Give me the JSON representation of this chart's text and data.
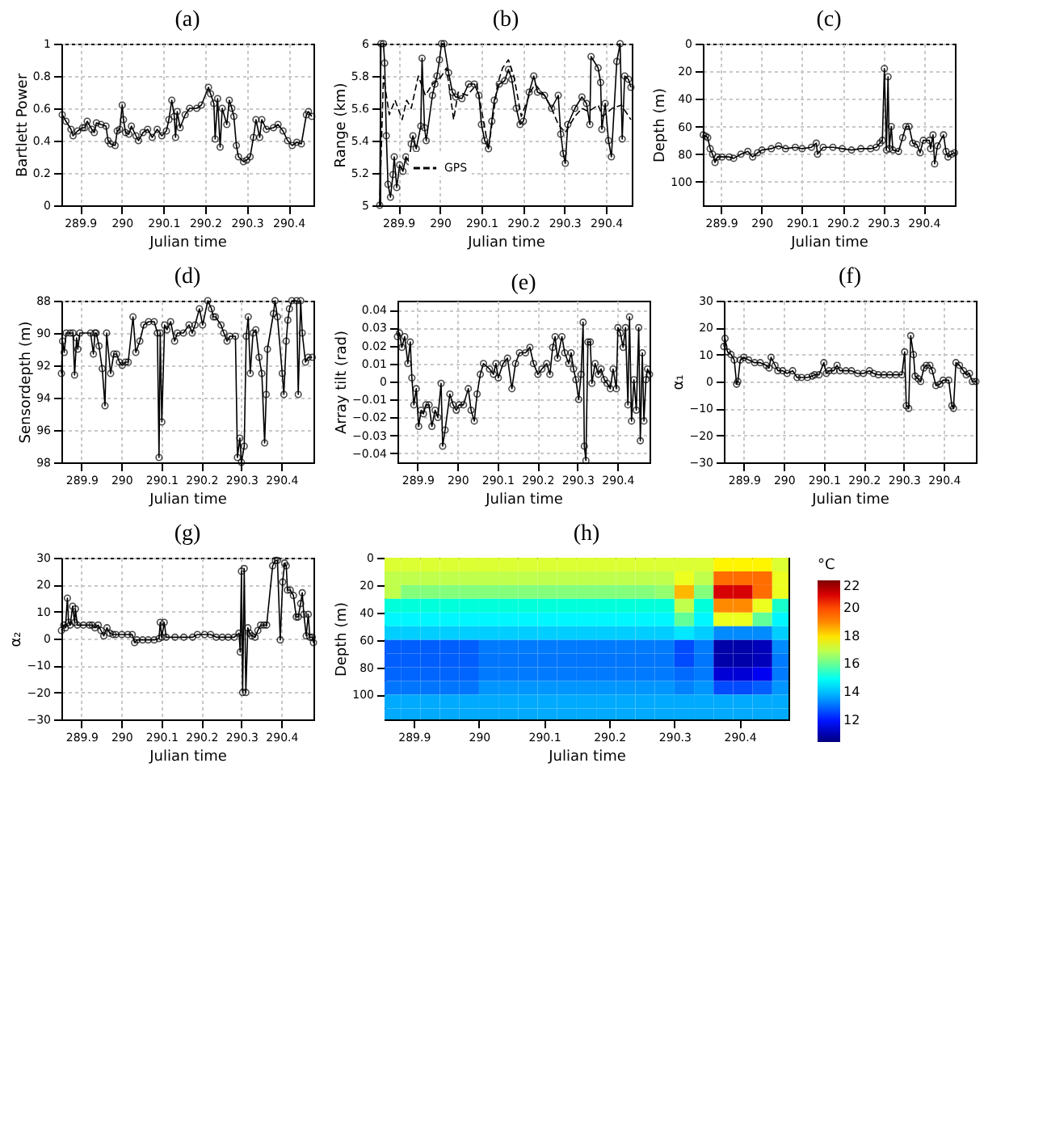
{
  "chart_data": [
    {
      "type": "line",
      "title": "(a)",
      "xlabel": "Julian time",
      "ylabel": "Bartlett Power",
      "xlim": [
        289.855,
        290.46
      ],
      "xticks": [
        289.9,
        290,
        290.1,
        290.2,
        290.3,
        290.4
      ],
      "ylim": [
        0,
        1
      ],
      "yticks": [
        0,
        0.2,
        0.4,
        0.6,
        0.8,
        1
      ],
      "grid": true,
      "marker": "circle",
      "color": "#000000",
      "x": [
        289.857,
        289.866,
        289.878,
        289.883,
        289.894,
        289.906,
        289.911,
        289.917,
        289.928,
        289.934,
        289.939,
        289.95,
        289.962,
        289.967,
        289.973,
        289.984,
        289.989,
        289.995,
        290.001,
        290.004,
        290.009,
        290.017,
        290.023,
        290.034,
        290.04,
        290.051,
        290.062,
        290.073,
        290.085,
        290.096,
        290.107,
        290.113,
        290.12,
        290.126,
        290.129,
        290.133,
        290.14,
        290.152,
        290.163,
        290.18,
        290.191,
        290.208,
        290.213,
        290.221,
        290.224,
        290.23,
        290.236,
        290.241,
        290.252,
        290.258,
        290.264,
        290.269,
        290.275,
        290.28,
        290.292,
        290.3,
        290.308,
        290.316,
        290.322,
        290.331,
        290.336,
        290.347,
        290.364,
        290.375,
        290.387,
        290.398,
        290.409,
        290.42,
        290.431,
        290.443,
        290.448,
        290.456
      ],
      "values": [
        0.56,
        0.52,
        0.47,
        0.43,
        0.46,
        0.48,
        0.48,
        0.52,
        0.47,
        0.45,
        0.51,
        0.5,
        0.49,
        0.4,
        0.38,
        0.37,
        0.46,
        0.47,
        0.62,
        0.53,
        0.45,
        0.44,
        0.49,
        0.43,
        0.4,
        0.45,
        0.47,
        0.42,
        0.47,
        0.43,
        0.46,
        0.53,
        0.65,
        0.55,
        0.42,
        0.58,
        0.48,
        0.56,
        0.6,
        0.6,
        0.62,
        0.73,
        0.69,
        0.63,
        0.41,
        0.66,
        0.36,
        0.6,
        0.5,
        0.65,
        0.6,
        0.55,
        0.37,
        0.3,
        0.27,
        0.28,
        0.3,
        0.42,
        0.53,
        0.42,
        0.53,
        0.47,
        0.48,
        0.5,
        0.46,
        0.4,
        0.37,
        0.39,
        0.38,
        0.56,
        0.58,
        0.55
      ]
    },
    {
      "type": "line",
      "title": "(b)",
      "xlabel": "Julian time",
      "ylabel": "Range (km)",
      "xlim": [
        289.855,
        290.462
      ],
      "xticks": [
        289.9,
        290,
        290.1,
        290.2,
        290.3,
        290.4
      ],
      "ylim": [
        5,
        6
      ],
      "yticks": [
        5,
        5.2,
        5.4,
        5.6,
        5.8,
        6
      ],
      "grid": true,
      "legend": "bottom left",
      "series": [
        {
          "color": "#000000",
          "marker": "circle",
          "line_style": "solid",
          "x": [
            289.855,
            289.858,
            289.864,
            289.867,
            289.871,
            289.875,
            289.881,
            289.887,
            289.89,
            289.896,
            289.903,
            289.911,
            289.918,
            289.926,
            289.931,
            289.935,
            289.943,
            289.954,
            289.957,
            289.963,
            289.967,
            289.982,
            289.988,
            289.993,
            289.999,
            290.004,
            290.01,
            290.021,
            290.03,
            290.038,
            290.053,
            290.069,
            290.083,
            290.094,
            290.1,
            290.108,
            290.117,
            290.125,
            290.131,
            290.143,
            290.156,
            290.165,
            290.173,
            290.184,
            290.193,
            290.201,
            290.215,
            290.226,
            290.235,
            290.252,
            290.269,
            290.285,
            290.291,
            290.297,
            290.302,
            290.308,
            290.325,
            290.342,
            290.353,
            290.361,
            290.364,
            290.381,
            290.387,
            290.39,
            290.398,
            290.406,
            290.413,
            290.426,
            290.434,
            290.439,
            290.445,
            290.454,
            290.46
          ],
          "values": [
            5.0,
            6.0,
            6.0,
            5.88,
            5.43,
            5.13,
            5.05,
            5.19,
            5.3,
            5.11,
            5.25,
            5.21,
            5.3,
            5.27,
            5.38,
            5.43,
            5.35,
            5.49,
            5.91,
            5.48,
            5.4,
            5.68,
            5.75,
            5.8,
            5.9,
            6.0,
            6.0,
            5.82,
            5.7,
            5.67,
            5.66,
            5.75,
            5.75,
            5.68,
            5.5,
            5.4,
            5.35,
            5.52,
            5.65,
            5.75,
            5.77,
            5.84,
            5.78,
            5.6,
            5.5,
            5.52,
            5.7,
            5.8,
            5.7,
            5.68,
            5.6,
            5.68,
            5.44,
            5.32,
            5.26,
            5.5,
            5.6,
            5.67,
            5.63,
            5.5,
            5.92,
            5.85,
            5.76,
            5.47,
            5.63,
            5.4,
            5.3,
            5.89,
            6.0,
            5.41,
            5.8,
            5.78,
            5.73
          ]
        },
        {
          "name": "GPS",
          "color": "#000000",
          "marker": "none",
          "line_style": "dashed",
          "x": [
            289.855,
            289.864,
            289.878,
            289.892,
            289.909,
            289.92,
            289.931,
            289.948,
            289.965,
            289.982,
            289.999,
            290.016,
            290.033,
            290.044,
            290.066,
            290.089,
            290.117,
            290.139,
            290.151,
            290.165,
            290.178,
            290.196,
            290.218,
            290.229,
            290.252,
            290.269,
            290.285,
            290.302,
            290.325,
            290.342,
            290.358,
            290.381,
            290.392,
            290.415,
            290.437,
            290.46
          ],
          "values": [
            5.0,
            5.8,
            5.56,
            5.65,
            5.53,
            5.65,
            5.6,
            5.8,
            5.68,
            5.75,
            5.78,
            5.85,
            5.53,
            5.7,
            5.68,
            5.75,
            5.35,
            5.75,
            5.85,
            5.9,
            5.8,
            5.55,
            5.7,
            5.75,
            5.68,
            5.6,
            5.5,
            5.45,
            5.55,
            5.6,
            5.58,
            5.62,
            5.55,
            5.6,
            5.62,
            5.53
          ]
        }
      ]
    },
    {
      "type": "line",
      "title": "(c)",
      "xlabel": "Julian time",
      "ylabel": "Depth (m)",
      "xlim": [
        289.855,
        290.477
      ],
      "xticks": [
        289.9,
        290,
        290.1,
        290.2,
        290.3,
        290.4
      ],
      "ylim": [
        117,
        0
      ],
      "yticks": [
        0,
        20,
        40,
        60,
        80,
        100
      ],
      "grid": true,
      "marker": "circle",
      "color": "#000000",
      "x": [
        289.856,
        289.862,
        289.867,
        289.873,
        289.879,
        289.885,
        289.891,
        289.902,
        289.92,
        289.931,
        289.949,
        289.966,
        289.978,
        289.99,
        290.001,
        290.024,
        290.042,
        290.059,
        290.083,
        290.1,
        290.123,
        290.135,
        290.138,
        290.152,
        290.176,
        290.199,
        290.222,
        290.245,
        290.269,
        290.283,
        290.292,
        290.298,
        290.303,
        290.308,
        290.312,
        290.315,
        290.32,
        290.324,
        290.338,
        290.348,
        290.356,
        290.364,
        290.373,
        290.383,
        290.391,
        290.399,
        290.414,
        290.417,
        290.423,
        290.427,
        290.434,
        290.449,
        290.455,
        290.46,
        290.469,
        290.476
      ],
      "values": [
        66,
        67,
        68,
        76,
        80,
        86,
        82,
        82,
        82,
        83,
        80,
        78,
        82,
        79,
        77,
        76,
        74,
        76,
        75,
        76,
        75,
        72,
        80,
        75,
        75,
        76,
        77,
        76,
        76,
        75,
        72,
        70,
        18,
        77,
        24,
        76,
        60,
        77,
        78,
        68,
        60,
        60,
        72,
        73,
        79,
        70,
        70,
        76,
        66,
        87,
        74,
        66,
        78,
        82,
        80,
        79
      ]
    },
    {
      "type": "line",
      "title": "(d)",
      "xlabel": "Julian time",
      "ylabel": "Sensordepth (m)",
      "xlim": [
        289.85,
        290.48
      ],
      "xticks": [
        289.9,
        290,
        290.1,
        290.2,
        290.3,
        290.4
      ],
      "ylim": [
        98,
        88
      ],
      "yticks": [
        88,
        90,
        92,
        94,
        96,
        98
      ],
      "grid": true,
      "marker": "circle",
      "color": "#000000",
      "x": [
        289.85,
        289.853,
        289.857,
        289.862,
        289.872,
        289.879,
        289.883,
        289.888,
        289.891,
        289.896,
        289.923,
        289.93,
        289.934,
        289.937,
        289.944,
        289.952,
        289.959,
        289.963,
        289.973,
        289.981,
        289.988,
        289.995,
        290.002,
        290.01,
        290.017,
        290.029,
        290.036,
        290.046,
        290.056,
        290.068,
        290.082,
        290.09,
        290.094,
        290.097,
        290.101,
        290.108,
        290.114,
        290.123,
        290.133,
        290.14,
        290.155,
        290.169,
        290.177,
        290.184,
        290.195,
        290.203,
        290.216,
        290.225,
        290.23,
        290.235,
        290.249,
        290.256,
        290.264,
        290.271,
        290.285,
        290.29,
        290.296,
        290.3,
        290.307,
        290.312,
        290.317,
        290.322,
        290.329,
        290.336,
        290.344,
        290.351,
        290.358,
        290.362,
        290.365,
        290.38,
        290.384,
        290.39,
        290.402,
        290.406,
        290.412,
        290.416,
        290.42,
        290.426,
        290.438,
        290.442,
        290.448,
        290.452,
        290.46,
        290.467,
        290.477
      ],
      "values": [
        92.5,
        90.5,
        91.2,
        90,
        90,
        90,
        92.6,
        90.3,
        91,
        90,
        90,
        91.3,
        90,
        90,
        90.8,
        92.2,
        94.5,
        90,
        92.5,
        91.3,
        91.3,
        91.8,
        92,
        91.8,
        91.8,
        89,
        91.2,
        90.5,
        89.5,
        89.3,
        89.3,
        90,
        97.7,
        90,
        95.5,
        89.5,
        89.8,
        89.3,
        90.5,
        90,
        90,
        89.5,
        90,
        89.5,
        88.5,
        89.5,
        88,
        88.5,
        89,
        89,
        89.5,
        90,
        90.5,
        90.2,
        90.2,
        97.7,
        96.5,
        98,
        97,
        90.2,
        89,
        92.5,
        90,
        89.8,
        91.5,
        92.5,
        96.8,
        93.8,
        91,
        88.8,
        88,
        89,
        92.5,
        93.8,
        90.5,
        89.2,
        88.5,
        88,
        88,
        93.8,
        88,
        90,
        91.8,
        91.5,
        91.5
      ]
    },
    {
      "type": "line",
      "title": "(e)",
      "xlabel": "Julian time",
      "ylabel": "Array tilt (rad)",
      "xlim": [
        289.85,
        290.48
      ],
      "xticks": [
        289.9,
        290,
        290.1,
        290.2,
        290.3,
        290.4
      ],
      "ylim": [
        -0.045,
        0.045
      ],
      "yticks": [
        -0.04,
        -0.03,
        -0.02,
        -0.01,
        0,
        0.01,
        0.02,
        0.03,
        0.04
      ],
      "grid": true,
      "marker": "circle",
      "color": "#000000",
      "x": [
        289.85,
        289.855,
        289.861,
        289.868,
        289.876,
        289.882,
        289.886,
        289.891,
        289.897,
        289.903,
        289.909,
        289.915,
        289.921,
        289.929,
        289.936,
        289.944,
        289.951,
        289.959,
        289.963,
        289.969,
        289.981,
        289.989,
        289.997,
        290.004,
        290.015,
        290.027,
        290.034,
        290.042,
        290.049,
        290.057,
        290.065,
        290.08,
        290.09,
        290.096,
        290.102,
        290.114,
        290.125,
        290.136,
        290.145,
        290.155,
        290.17,
        290.181,
        290.19,
        290.201,
        290.211,
        290.223,
        290.231,
        290.238,
        290.244,
        290.25,
        290.261,
        290.268,
        290.278,
        290.284,
        290.29,
        290.296,
        290.303,
        290.309,
        290.314,
        290.317,
        290.321,
        290.326,
        290.332,
        290.336,
        290.344,
        290.352,
        290.359,
        290.367,
        290.374,
        290.382,
        290.389,
        290.397,
        290.401,
        290.407,
        290.414,
        290.42,
        290.426,
        290.43,
        290.435,
        290.441,
        290.447,
        290.453,
        290.457,
        290.462,
        290.466,
        290.471,
        290.475,
        290.48
      ],
      "values": [
        0.025,
        0.027,
        0.019,
        0.025,
        0.01,
        0.022,
        0.002,
        -0.013,
        -0.004,
        -0.025,
        -0.016,
        -0.018,
        -0.013,
        -0.013,
        -0.025,
        -0.016,
        -0.02,
        -0.001,
        -0.036,
        -0.027,
        -0.007,
        -0.013,
        -0.016,
        -0.013,
        -0.013,
        -0.004,
        -0.016,
        -0.022,
        -0.007,
        0.004,
        0.01,
        0.007,
        0.004,
        0.01,
        0.002,
        0.01,
        0.013,
        -0.004,
        0.01,
        0.016,
        0.016,
        0.019,
        0.01,
        0.004,
        0.007,
        0.01,
        0.004,
        0.019,
        0.025,
        0.013,
        0.025,
        0.016,
        0.01,
        0.016,
        0.007,
        0.001,
        -0.01,
        0.004,
        0.033,
        -0.036,
        -0.044,
        0.022,
        0.022,
        -0.001,
        0.01,
        0.004,
        0.007,
        0.001,
        -0.001,
        -0.004,
        0.007,
        -0.004,
        0.03,
        0.027,
        0.019,
        0.03,
        -0.013,
        0.036,
        -0.022,
        0.001,
        -0.016,
        0.03,
        -0.033,
        0.016,
        -0.022,
        0.001,
        0.007,
        0.004
      ]
    },
    {
      "type": "line",
      "title": "(f)",
      "xlabel": "Julian time",
      "ylabel": "α₁",
      "xlim": [
        289.85,
        290.48
      ],
      "xticks": [
        289.9,
        290,
        290.1,
        290.2,
        290.3,
        290.4
      ],
      "ylim": [
        -30,
        30
      ],
      "yticks": [
        -30,
        -20,
        -10,
        0,
        10,
        20,
        30
      ],
      "grid": true,
      "marker": "circle",
      "color": "#000000",
      "x": [
        289.85,
        289.853,
        289.859,
        289.868,
        289.876,
        289.882,
        289.885,
        289.891,
        289.9,
        289.912,
        289.927,
        289.941,
        289.956,
        289.963,
        289.968,
        289.978,
        289.985,
        289.997,
        290.008,
        290.022,
        290.033,
        290.044,
        290.059,
        290.071,
        290.077,
        290.088,
        290.1,
        290.106,
        290.113,
        290.125,
        290.133,
        290.14,
        290.155,
        290.169,
        290.184,
        290.199,
        290.214,
        290.224,
        290.236,
        290.25,
        290.265,
        290.28,
        290.295,
        290.302,
        290.306,
        290.312,
        290.317,
        290.324,
        290.328,
        290.336,
        290.342,
        290.35,
        290.356,
        290.365,
        290.371,
        290.38,
        290.39,
        290.398,
        290.412,
        290.42,
        290.424,
        290.43,
        290.439,
        290.449,
        290.456,
        290.464,
        290.471,
        290.48
      ],
      "values": [
        13,
        16,
        11,
        10,
        8,
        -1,
        0,
        8,
        9,
        8,
        7,
        7,
        6,
        5,
        9,
        6,
        4,
        4,
        3,
        4,
        1.5,
        1.5,
        1.5,
        2,
        2.5,
        2.5,
        7,
        3,
        4,
        4,
        6,
        4,
        4,
        4,
        3,
        3,
        4,
        3,
        2.5,
        2.5,
        2.5,
        2.5,
        2.5,
        11,
        -9,
        -10,
        17,
        10,
        2,
        1,
        0,
        5,
        6,
        6,
        4,
        -1.5,
        -1,
        0.5,
        0.5,
        -9,
        -10,
        7,
        6,
        4,
        2.5,
        3,
        0,
        0
      ]
    },
    {
      "type": "line",
      "title": "(g)",
      "xlabel": "Julian time",
      "ylabel": "α₂",
      "xlim": [
        289.85,
        290.48
      ],
      "xticks": [
        289.9,
        290,
        290.1,
        290.2,
        290.3,
        290.4
      ],
      "ylim": [
        -30,
        30
      ],
      "yticks": [
        -30,
        -20,
        -10,
        0,
        10,
        20,
        30
      ],
      "grid": true,
      "marker": "circle",
      "color": "#000000",
      "x": [
        289.85,
        289.856,
        289.86,
        289.865,
        289.868,
        289.872,
        289.878,
        289.883,
        289.885,
        289.89,
        289.905,
        289.92,
        289.927,
        289.934,
        289.942,
        289.949,
        289.956,
        289.964,
        289.971,
        289.979,
        289.986,
        290.001,
        290.016,
        290.027,
        290.033,
        290.039,
        290.053,
        290.067,
        290.082,
        290.094,
        290.097,
        290.101,
        290.107,
        290.112,
        290.134,
        290.156,
        290.178,
        290.19,
        290.208,
        290.223,
        290.237,
        290.252,
        290.267,
        290.282,
        290.294,
        290.297,
        290.3,
        290.303,
        290.307,
        290.311,
        290.316,
        290.32,
        290.326,
        290.334,
        290.341,
        290.348,
        290.356,
        290.363,
        290.378,
        290.385,
        290.39,
        290.397,
        290.403,
        290.408,
        290.412,
        290.415,
        290.422,
        290.43,
        290.437,
        290.442,
        290.448,
        290.452,
        290.456,
        290.462,
        290.467,
        290.471,
        290.477,
        290.48
      ],
      "values": [
        3,
        5,
        4,
        15,
        6,
        5,
        12,
        6,
        11,
        5,
        5,
        5,
        5,
        4,
        5,
        3,
        1,
        4,
        2,
        1.5,
        1.5,
        1.5,
        1.5,
        1.5,
        -1.5,
        -0.5,
        -0.5,
        -0.5,
        -0.5,
        0,
        6,
        0.5,
        6,
        0.5,
        0.5,
        0.5,
        0.5,
        1.5,
        1.5,
        1.5,
        0.5,
        0.5,
        0.5,
        0.5,
        2,
        -5,
        25,
        -20,
        26,
        -20,
        4,
        2,
        1,
        0.5,
        3,
        5,
        5,
        5,
        27,
        29,
        29,
        -0.5,
        21,
        28,
        27,
        18,
        18,
        16,
        8,
        8,
        13,
        17,
        9,
        1,
        9,
        0.5,
        0.5,
        -1.5
      ]
    },
    {
      "type": "heatmap",
      "title": "(h)",
      "xlabel": "Julian time",
      "ylabel": "Depth (m)",
      "clabel": "°C",
      "xlim": [
        289.855,
        290.475
      ],
      "xticks": [
        289.9,
        290,
        290.1,
        290.2,
        290.3,
        290.4
      ],
      "ylim": [
        118,
        0
      ],
      "yticks": [
        0,
        20,
        40,
        60,
        80,
        100
      ],
      "clim": [
        10.5,
        22
      ],
      "cticks": [
        12,
        14,
        16,
        18,
        20,
        22
      ],
      "x": [
        289.865,
        289.895,
        289.925,
        289.955,
        289.985,
        290.015,
        290.045,
        290.075,
        290.105,
        290.135,
        290.165,
        290.195,
        290.225,
        290.255,
        290.285,
        290.315,
        290.345,
        290.375,
        290.405,
        290.435,
        290.465
      ],
      "y": [
        5,
        15,
        25,
        35,
        45,
        55,
        65,
        75,
        85,
        95,
        105,
        115
      ],
      "cells": [
        [
          17.3,
          17.3,
          17.3,
          17.3,
          17.3,
          17.3,
          17.3,
          17.3,
          17.3,
          17.3,
          17.3,
          17.3,
          17.3,
          17.3,
          17.3,
          17.3,
          17.3,
          17.8,
          17.8,
          17.8,
          17.3
        ],
        [
          17.0,
          17.0,
          17.0,
          17.0,
          17.0,
          17.0,
          17.0,
          17.0,
          17.0,
          17.0,
          17.0,
          17.0,
          17.0,
          17.0,
          17.0,
          17.5,
          17.0,
          19.5,
          19.5,
          19.5,
          17.5
        ],
        [
          17.0,
          16.3,
          16.3,
          16.3,
          16.3,
          16.3,
          16.3,
          16.3,
          16.3,
          16.3,
          16.3,
          16.3,
          16.3,
          16.3,
          16.5,
          18.5,
          16.3,
          21,
          21,
          19.5,
          17.5
        ],
        [
          15.3,
          15.3,
          15.3,
          15.3,
          15.3,
          15.3,
          15.3,
          15.3,
          15.3,
          15.3,
          15.3,
          15.3,
          15.3,
          15.3,
          15.3,
          17,
          15.3,
          19,
          19,
          17.5,
          15.5
        ],
        [
          14.7,
          14.7,
          14.7,
          14.7,
          14.7,
          14.7,
          14.7,
          14.7,
          14.7,
          14.7,
          14.7,
          14.7,
          14.7,
          14.7,
          14.7,
          16,
          14.7,
          17.5,
          17.5,
          16,
          14.7
        ],
        [
          14.2,
          14.2,
          14.2,
          14.2,
          14.2,
          14.2,
          14.2,
          14.2,
          14.2,
          14.2,
          14.2,
          14.2,
          14.2,
          14.2,
          14.2,
          14.5,
          14.2,
          13.5,
          13.5,
          13.5,
          14.2
        ],
        [
          12.8,
          12.8,
          12.8,
          12.8,
          12.8,
          13.3,
          13.3,
          13.3,
          13.3,
          13.3,
          13.3,
          13.3,
          13.3,
          13.3,
          13.3,
          12.5,
          13.3,
          11,
          11,
          11.2,
          13.5
        ],
        [
          12.8,
          12.8,
          12.8,
          12.8,
          12.8,
          13.2,
          13.2,
          13.2,
          13.2,
          13.2,
          13.2,
          13.2,
          13.2,
          13.2,
          13.2,
          12.5,
          13.2,
          11,
          11,
          11.2,
          13.3
        ],
        [
          12.9,
          12.9,
          12.9,
          12.9,
          12.9,
          13.3,
          13.3,
          13.3,
          13.3,
          13.3,
          13.3,
          13.3,
          13.3,
          13.3,
          13.3,
          13,
          13.3,
          11.5,
          11.5,
          11.8,
          13.3
        ],
        [
          13.2,
          13.2,
          13.2,
          13.2,
          13.2,
          13.6,
          13.6,
          13.6,
          13.6,
          13.6,
          13.6,
          13.6,
          13.6,
          13.6,
          13.6,
          13.4,
          13.6,
          12.5,
          12.5,
          12.8,
          13.6
        ],
        [
          13.8,
          13.8,
          13.8,
          13.8,
          13.8,
          13.8,
          13.8,
          13.8,
          13.8,
          13.8,
          13.8,
          13.8,
          13.8,
          13.8,
          13.8,
          13.8,
          13.8,
          13.8,
          13.8,
          13.8,
          13.8
        ],
        [
          13.8,
          13.8,
          13.8,
          13.8,
          13.8,
          13.8,
          13.8,
          13.8,
          13.8,
          13.8,
          13.8,
          13.8,
          13.8,
          13.8,
          13.8,
          13.8,
          13.8,
          13.8,
          13.8,
          13.8,
          13.8
        ]
      ]
    }
  ]
}
